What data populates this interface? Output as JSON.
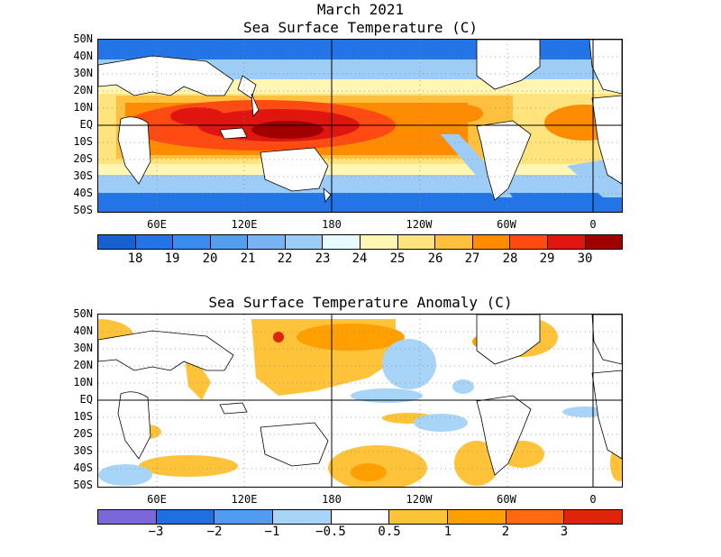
{
  "header": {
    "line1": "March 2021",
    "line2": "Sea Surface Temperature (C)"
  },
  "anomaly": {
    "title": "Sea Surface Temperature Anomaly (C)"
  },
  "latitude_labels": [
    "50N",
    "40N",
    "30N",
    "20N",
    "10N",
    "EQ",
    "10S",
    "20S",
    "30S",
    "40S",
    "50S"
  ],
  "longitude_labels": [
    "60E",
    "120E",
    "180",
    "120W",
    "60W",
    "0"
  ],
  "sst_colorbar": {
    "colors": [
      "#1760d0",
      "#2374e6",
      "#3a8cf0",
      "#549eef",
      "#78b4f2",
      "#9dcdf7",
      "#e6fbff",
      "#fff6b4",
      "#ffe47e",
      "#ffc03d",
      "#ff8c00",
      "#ff4a12",
      "#e0150f",
      "#a00000"
    ],
    "labels": [
      "18",
      "19",
      "20",
      "21",
      "22",
      "23",
      "24",
      "25",
      "26",
      "27",
      "28",
      "29",
      "30"
    ]
  },
  "anom_colorbar": {
    "colors": [
      "#7a68d8",
      "#1f6fe0",
      "#4f9cf0",
      "#a8d4f8",
      "#ffffff",
      "#ffc33a",
      "#ffa000",
      "#ff6a10",
      "#e0240a"
    ],
    "labels": [
      "−3",
      "−2",
      "−1",
      "−0.5",
      "0.5",
      "1",
      "2",
      "3"
    ]
  },
  "map_colors": {
    "land": "#ffffff",
    "coast": "#000000",
    "grid": "#888888"
  }
}
